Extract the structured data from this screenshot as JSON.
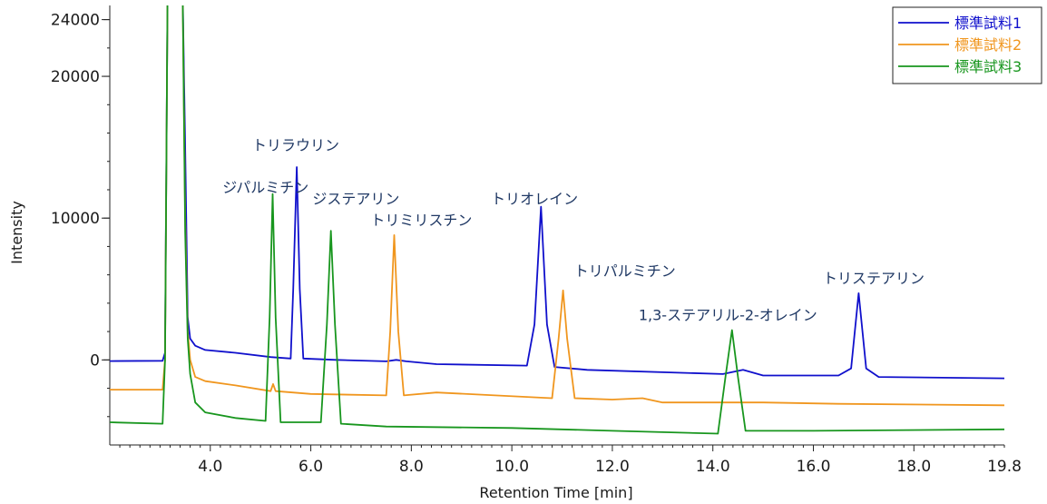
{
  "chart_data": {
    "type": "line",
    "title": "",
    "xlabel": "Retention Time [min]",
    "ylabel": "Intensity",
    "xlim": [
      2.0,
      19.8
    ],
    "ylim": [
      -6000,
      25000
    ],
    "x_tick_labels": [
      "4.0",
      "6.0",
      "8.0",
      "10.0",
      "12.0",
      "14.0",
      "16.0",
      "18.0",
      "19.8"
    ],
    "x_tick_values": [
      4,
      6,
      8,
      10,
      12,
      14,
      16,
      18,
      19.8
    ],
    "y_tick_labels": [
      "0",
      "10000",
      "20000",
      "24000"
    ],
    "y_tick_values": [
      0,
      10000,
      20000,
      24000
    ],
    "grid": false,
    "legend_position": "top-right",
    "series": [
      {
        "name": "標準試料1",
        "color": "#1010cc",
        "x": [
          2.0,
          3.05,
          3.1,
          3.15,
          3.2,
          3.45,
          3.5,
          3.55,
          3.6,
          3.7,
          3.9,
          4.5,
          5.2,
          5.6,
          5.65,
          5.72,
          5.78,
          5.85,
          6.5,
          7.5,
          7.7,
          7.9,
          8.5,
          10.3,
          10.45,
          10.58,
          10.7,
          10.85,
          11.5,
          14.2,
          14.6,
          15.0,
          16.5,
          16.75,
          16.9,
          17.05,
          17.3,
          19.8
        ],
        "y": [
          -80,
          -60,
          500,
          26000,
          26000,
          26000,
          15000,
          3000,
          1500,
          1000,
          700,
          500,
          200,
          100,
          5000,
          13600,
          5000,
          100,
          0,
          -100,
          0,
          -100,
          -300,
          -400,
          2500,
          10800,
          2500,
          -500,
          -700,
          -1000,
          -700,
          -1100,
          -1100,
          -600,
          4700,
          -600,
          -1200,
          -1300
        ]
      },
      {
        "name": "標準試料2",
        "color": "#f0961e",
        "x": [
          2.0,
          3.05,
          3.1,
          3.15,
          3.2,
          3.45,
          3.5,
          3.55,
          3.6,
          3.7,
          3.9,
          4.5,
          5.2,
          5.25,
          5.3,
          6.0,
          7.5,
          7.58,
          7.66,
          7.74,
          7.85,
          8.5,
          10.8,
          10.93,
          11.02,
          11.1,
          11.25,
          12.0,
          12.6,
          13.0,
          15.0,
          16.5,
          19.8
        ],
        "y": [
          -2100,
          -2100,
          0,
          26000,
          26000,
          26000,
          10000,
          2000,
          0,
          -1200,
          -1500,
          -1800,
          -2200,
          -1700,
          -2200,
          -2400,
          -2500,
          2000,
          8800,
          2000,
          -2500,
          -2300,
          -2700,
          1500,
          4900,
          1500,
          -2700,
          -2800,
          -2700,
          -3000,
          -3000,
          -3100,
          -3200
        ]
      },
      {
        "name": "標準試料3",
        "color": "#18961e",
        "x": [
          2.0,
          3.05,
          3.1,
          3.15,
          3.2,
          3.45,
          3.5,
          3.55,
          3.6,
          3.7,
          3.9,
          4.5,
          5.1,
          5.18,
          5.24,
          5.3,
          5.4,
          6.2,
          6.32,
          6.4,
          6.48,
          6.6,
          7.5,
          10.0,
          12.0,
          14.1,
          14.25,
          14.38,
          14.5,
          14.65,
          16.0,
          19.8
        ],
        "y": [
          -4400,
          -4500,
          0,
          26000,
          26000,
          26000,
          9000,
          1500,
          -1000,
          -3000,
          -3700,
          -4100,
          -4300,
          3000,
          11700,
          3000,
          -4400,
          -4400,
          2500,
          9100,
          2500,
          -4500,
          -4700,
          -4800,
          -5000,
          -5200,
          -1200,
          2100,
          -1200,
          -5000,
          -5000,
          -4900
        ]
      }
    ],
    "annotations": [
      {
        "text": "トリラウリン",
        "x": 5.7,
        "y": 14800
      },
      {
        "text": "ジパルミチン",
        "x": 5.1,
        "y": 11800
      },
      {
        "text": "ジステアリン",
        "x": 6.9,
        "y": 11000
      },
      {
        "text": "トリミリスチン",
        "x": 8.2,
        "y": 9500
      },
      {
        "text": "トリオレイン",
        "x": 10.45,
        "y": 11000
      },
      {
        "text": "トリパルミチン",
        "x": 12.25,
        "y": 5900
      },
      {
        "text": "1,3-ステアリル-2-オレイン",
        "x": 14.3,
        "y": 2800
      },
      {
        "text": "トリステアリン",
        "x": 17.2,
        "y": 5400
      }
    ]
  }
}
